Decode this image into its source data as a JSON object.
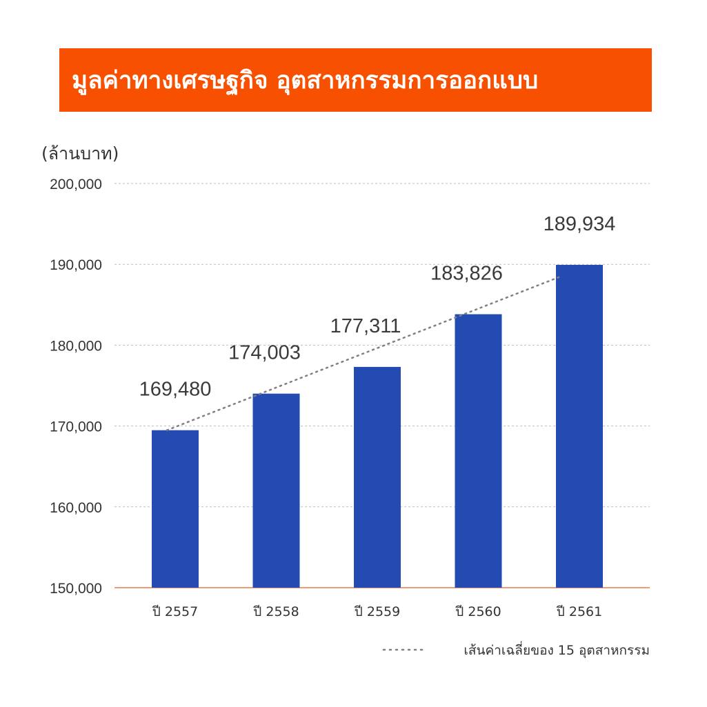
{
  "title": "มูลค่าทางเศรษฐกิจ อุตสาหกรรมการออกแบบ",
  "colors": {
    "banner": "#f75000",
    "bar": "#234bb2",
    "axis": "#e87b4a",
    "grid": "#bdbdbd",
    "trend": "#808080",
    "text": "#333333"
  },
  "chart_data": {
    "type": "bar",
    "ylabel": "(ล้านบาท)",
    "categories": [
      "ปี 2557",
      "ปี 2558",
      "ปี 2559",
      "ปี 2560",
      "ปี 2561"
    ],
    "series": [
      {
        "values": [
          169480,
          174003,
          177311,
          183826,
          189934
        ]
      }
    ],
    "value_labels": [
      "169,480",
      "174,003",
      "177,311",
      "183,826",
      "189,934"
    ],
    "ylim": [
      150000,
      200000
    ],
    "yticks": [
      150000,
      160000,
      170000,
      180000,
      190000,
      200000
    ],
    "ytick_labels": [
      "150,000",
      "160,000",
      "170,000",
      "180,000",
      "190,000",
      "200,000"
    ],
    "grid": true,
    "trendline": {
      "name": "เส้นค่าเฉลี่ยของ 15 อุตสาหกรรม",
      "style": "dotted",
      "start": [
        0,
        169480
      ],
      "end": [
        4,
        188400
      ]
    },
    "legend_position": "bottom-right"
  }
}
